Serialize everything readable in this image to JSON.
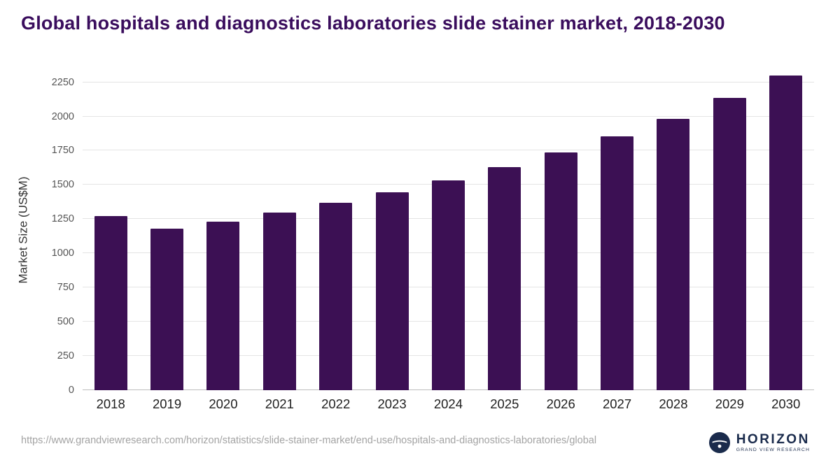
{
  "title": "Global hospitals and diagnostics laboratories slide stainer market, 2018-2030",
  "footer": {
    "source_url": "https://www.grandviewresearch.com/horizon/statistics/slide-stainer-market/end-use/hospitals-and-diagnostics-laboratories/global"
  },
  "logo": {
    "name": "HORIZON",
    "subtitle": "GRAND VIEW RESEARCH"
  },
  "colors": {
    "bar": "#3c1054",
    "title": "#3a0d5d",
    "grid": "#e4e4e4",
    "footer_text": "#a3a3a3",
    "logo_navy": "#1a2b4c"
  },
  "chart_data": {
    "type": "bar",
    "title": "Global hospitals and diagnostics laboratories slide stainer market, 2018-2030",
    "categories": [
      "2018",
      "2019",
      "2020",
      "2021",
      "2022",
      "2023",
      "2024",
      "2025",
      "2026",
      "2027",
      "2028",
      "2029",
      "2030"
    ],
    "values": [
      1272,
      1178,
      1233,
      1296,
      1368,
      1448,
      1532,
      1628,
      1738,
      1856,
      1984,
      2134,
      2301
    ],
    "xlabel": "",
    "ylabel": "Market Size (US$M)",
    "ylim": [
      0,
      2340
    ],
    "yticks": [
      0,
      250,
      500,
      750,
      1000,
      1250,
      1500,
      1750,
      2000,
      2250
    ],
    "grid": true,
    "legend_position": "none",
    "bar_color": "#3c1054"
  }
}
